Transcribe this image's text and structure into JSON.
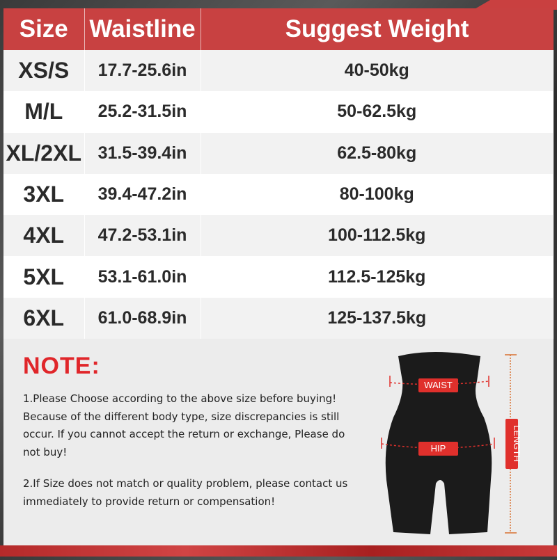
{
  "table": {
    "headers": [
      "Size",
      "Waistline",
      "Suggest Weight"
    ],
    "rows": [
      {
        "size": "XS/S",
        "waist": "17.7-25.6in",
        "weight": "40-50kg"
      },
      {
        "size": "M/L",
        "waist": "25.2-31.5in",
        "weight": "50-62.5kg"
      },
      {
        "size": "XL/2XL",
        "waist": "31.5-39.4in",
        "weight": "62.5-80kg"
      },
      {
        "size": "3XL",
        "waist": "39.4-47.2in",
        "weight": "80-100kg"
      },
      {
        "size": "4XL",
        "waist": "47.2-53.1in",
        "weight": "100-112.5kg"
      },
      {
        "size": "5XL",
        "waist": "53.1-61.0in",
        "weight": "112.5-125kg"
      },
      {
        "size": "6XL",
        "waist": "61.0-68.9in",
        "weight": "125-137.5kg"
      }
    ],
    "header_color": "#c84141"
  },
  "note": {
    "title": "NOTE:",
    "p1": "1.Please Choose according to the above size before buying! Because of the different body type, size discrepancies is still occur. If you cannot accept the return or exchange, Please do not buy!",
    "p2": "2.If Size does not match or quality problem, please contact us immediately to provide return or compensation!"
  },
  "figure": {
    "waist": "WAIST",
    "hip": "HIP",
    "length": "LENGTH",
    "accent": "#e0302c"
  }
}
